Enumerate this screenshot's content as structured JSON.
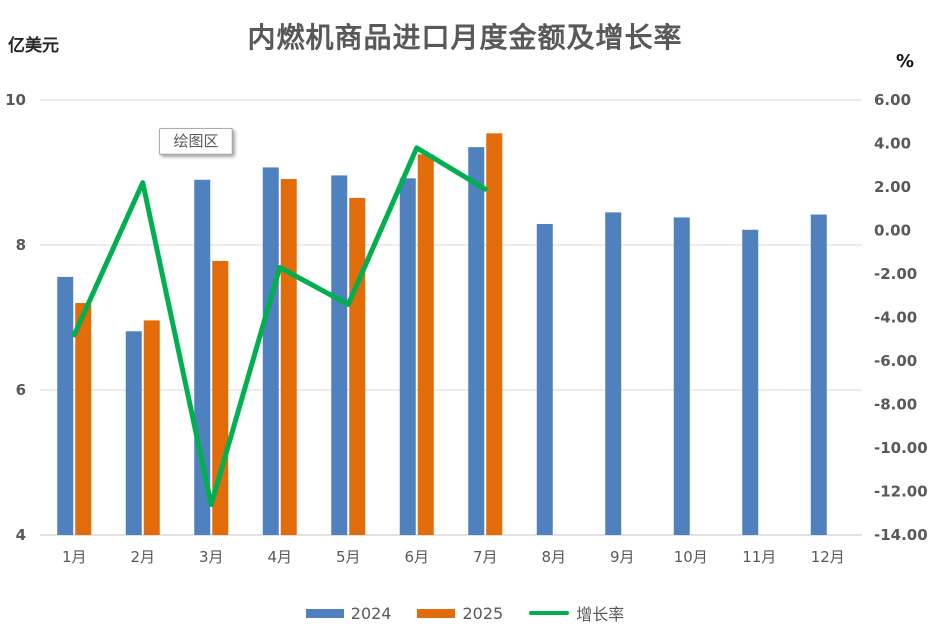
{
  "chart": {
    "title": "内燃机商品进口月度金额及增长率",
    "left_axis_unit": "亿美元",
    "right_axis_unit": "%",
    "plot_area_tooltip": "绘图区"
  },
  "colors": {
    "bar_2024": "#4E81BD",
    "bar_2025": "#E36C0A",
    "growth_line": "#00B050",
    "gridline": "#D9D9D9",
    "axis_line": "#C6C6C6",
    "tick_text": "#595959",
    "category_text": "#595959",
    "title_text": "#595959"
  },
  "chart_data": {
    "type": "bar",
    "subtype": "bar+line-combo",
    "title": "内燃机商品进口月度金额及增长率",
    "xlabel": "",
    "ylabel_left": "亿美元",
    "ylabel_right": "%",
    "grid": true,
    "legend_position": "bottom",
    "categories": [
      "1月",
      "2月",
      "3月",
      "4月",
      "5月",
      "6月",
      "7月",
      "8月",
      "9月",
      "10月",
      "11月",
      "12月"
    ],
    "series": [
      {
        "name": "2024",
        "type": "bar",
        "axis": "left",
        "color": "#4E81BD",
        "values": [
          7.56,
          6.81,
          8.9,
          9.07,
          8.96,
          8.92,
          9.35,
          8.29,
          8.45,
          8.38,
          8.21,
          8.42
        ]
      },
      {
        "name": "2025",
        "type": "bar",
        "axis": "left",
        "color": "#E36C0A",
        "values": [
          7.2,
          6.96,
          7.78,
          8.91,
          8.65,
          9.25,
          9.54,
          null,
          null,
          null,
          null,
          null
        ]
      },
      {
        "name": "增长率",
        "type": "line",
        "axis": "right",
        "color": "#00B050",
        "values": [
          -4.8,
          2.2,
          -12.6,
          -1.7,
          -3.4,
          3.8,
          1.9,
          null,
          null,
          null,
          null,
          null
        ]
      }
    ],
    "left_axis": {
      "min": 4,
      "max": 10,
      "step": 2,
      "ticks": [
        "10",
        "8",
        "6",
        "4"
      ]
    },
    "right_axis": {
      "min": -14,
      "max": 6,
      "step": 2,
      "ticks": [
        "6.00",
        "4.00",
        "2.00",
        "0.00",
        "-2.00",
        "-4.00",
        "-6.00",
        "-8.00",
        "-10.00",
        "-12.00",
        "-14.00"
      ]
    }
  }
}
